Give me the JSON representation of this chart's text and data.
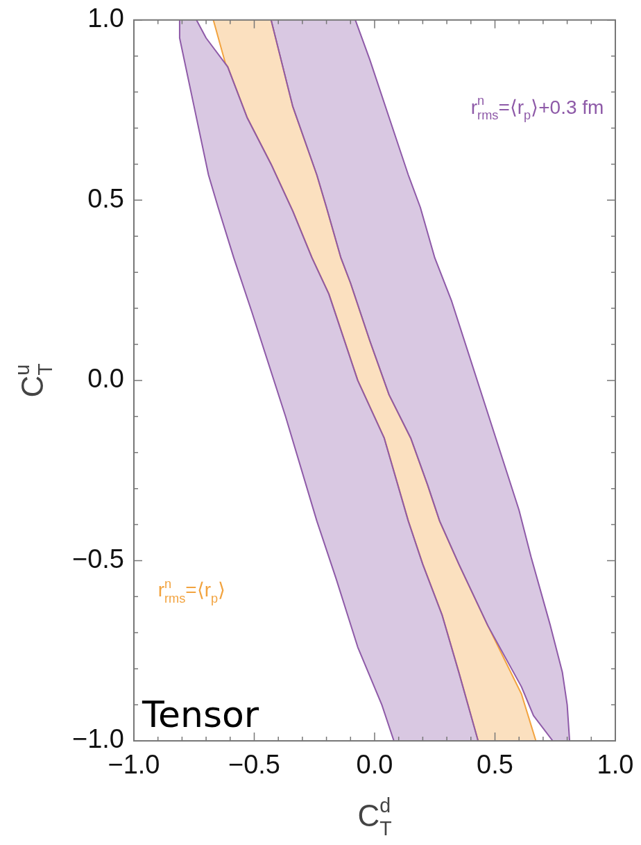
{
  "chart_data": {
    "type": "area",
    "xlabel": "C$_{T}$$^{d}$",
    "ylabel": "C$_{T}$$^{u}$",
    "annotations": [
      "Tensor"
    ],
    "xlim": [
      -1,
      1
    ],
    "ylim": [
      -1,
      1
    ],
    "xticks": [
      {
        "value": -1,
        "label": "−1.0"
      },
      {
        "value": -0.9,
        "label": null
      },
      {
        "value": -0.8,
        "label": null
      },
      {
        "value": -0.7,
        "label": null
      },
      {
        "value": -0.6,
        "label": null
      },
      {
        "value": -0.5,
        "label": "−0.5"
      },
      {
        "value": -0.4,
        "label": null
      },
      {
        "value": -0.3,
        "label": null
      },
      {
        "value": -0.2,
        "label": null
      },
      {
        "value": -0.1,
        "label": null
      },
      {
        "value": 0,
        "label": "0.0"
      },
      {
        "value": 0.1,
        "label": null
      },
      {
        "value": 0.2,
        "label": null
      },
      {
        "value": 0.3,
        "label": null
      },
      {
        "value": 0.4,
        "label": null
      },
      {
        "value": 0.5,
        "label": "0.5"
      },
      {
        "value": 0.6,
        "label": null
      },
      {
        "value": 0.7,
        "label": null
      },
      {
        "value": 0.8,
        "label": null
      },
      {
        "value": 0.9,
        "label": null
      },
      {
        "value": 1,
        "label": "1.0"
      }
    ],
    "yticks": [
      {
        "value": -1,
        "label": "−1.0"
      },
      {
        "value": -0.9,
        "label": null
      },
      {
        "value": -0.8,
        "label": null
      },
      {
        "value": -0.7,
        "label": null
      },
      {
        "value": -0.6,
        "label": null
      },
      {
        "value": -0.5,
        "label": "−0.5"
      },
      {
        "value": -0.4,
        "label": null
      },
      {
        "value": -0.3,
        "label": null
      },
      {
        "value": -0.2,
        "label": null
      },
      {
        "value": -0.1,
        "label": null
      },
      {
        "value": 0,
        "label": "0.0"
      },
      {
        "value": 0.1,
        "label": null
      },
      {
        "value": 0.2,
        "label": null
      },
      {
        "value": 0.3,
        "label": null
      },
      {
        "value": 0.4,
        "label": null
      },
      {
        "value": 0.5,
        "label": "0.5"
      },
      {
        "value": 0.6,
        "label": null
      },
      {
        "value": 0.7,
        "label": null
      },
      {
        "value": 0.8,
        "label": null
      },
      {
        "value": 0.9,
        "label": null
      },
      {
        "value": 1,
        "label": "1.0"
      }
    ],
    "series": [
      {
        "name": "r$_{rms}$$^{n}$=⟨r$_{p}$⟩+0.3 fm",
        "color": "#8e5aa8",
        "x": [
          -0.81,
          -0.81,
          -0.75,
          -0.69,
          -0.65,
          -0.585,
          -0.51,
          -0.37,
          -0.24,
          -0.16,
          -0.07,
          0.03,
          0.08,
          0.43,
          0.35,
          0.28,
          0.2,
          0.14,
          0.04,
          -0.07,
          -0.19,
          -0.26,
          -0.34,
          -0.43,
          -0.53,
          -0.61,
          -0.7,
          -0.74
        ],
        "values": [
          1,
          0.95,
          0.76,
          0.57,
          0.48,
          0.34,
          0.19,
          -0.1,
          -0.39,
          -0.55,
          -0.74,
          -0.9,
          -1,
          -1,
          -0.81,
          -0.65,
          -0.51,
          -0.39,
          -0.16,
          0,
          0.24,
          0.34,
          0.47,
          0.6,
          0.73,
          0.87,
          0.95,
          1
        ]
      },
      {
        "color": "#8e5aa8",
        "x": [
          -0.43,
          -0.34,
          -0.24,
          -0.2,
          -0.14,
          -0.1,
          -0.02,
          0.06,
          0.15,
          0.22,
          0.27,
          0.35,
          0.47,
          0.61,
          0.66,
          0.74,
          0.81,
          0.8,
          0.78,
          0.73,
          0.65,
          0.6,
          0.46,
          0.32,
          0.25,
          0.19,
          0.14,
          0.06,
          -0.02,
          -0.08
        ],
        "values": [
          1,
          0.76,
          0.57,
          0.48,
          0.34,
          0.27,
          0.11,
          -0.04,
          -0.16,
          -0.29,
          -0.39,
          -0.51,
          -0.68,
          -0.85,
          -0.93,
          -1,
          -1,
          -0.9,
          -0.81,
          -0.68,
          -0.49,
          -0.36,
          -0.07,
          0.22,
          0.34,
          0.48,
          0.57,
          0.73,
          0.89,
          1
        ]
      },
      {
        "name": "r$_{rms}$$^{n}$=⟨r$_{p}$⟩",
        "color": "#f2a33f",
        "x": [
          -0.67,
          -0.62,
          -0.61,
          -0.53,
          -0.43,
          -0.34,
          -0.26,
          -0.19,
          -0.07,
          0.04,
          0.14,
          0.2,
          0.28,
          0.35,
          0.43,
          0.67,
          0.61,
          0.47,
          0.35,
          0.27,
          0.22,
          0.15,
          0.06,
          -0.02,
          -0.1,
          -0.14,
          -0.2,
          -0.24,
          -0.34,
          -0.43
        ],
        "values": [
          1,
          0.88,
          0.87,
          0.73,
          0.6,
          0.47,
          0.34,
          0.24,
          0,
          -0.16,
          -0.39,
          -0.51,
          -0.65,
          -0.81,
          -1,
          -1,
          -0.87,
          -0.68,
          -0.51,
          -0.39,
          -0.29,
          -0.16,
          -0.04,
          0.11,
          0.27,
          0.34,
          0.48,
          0.57,
          0.76,
          1
        ]
      }
    ]
  }
}
